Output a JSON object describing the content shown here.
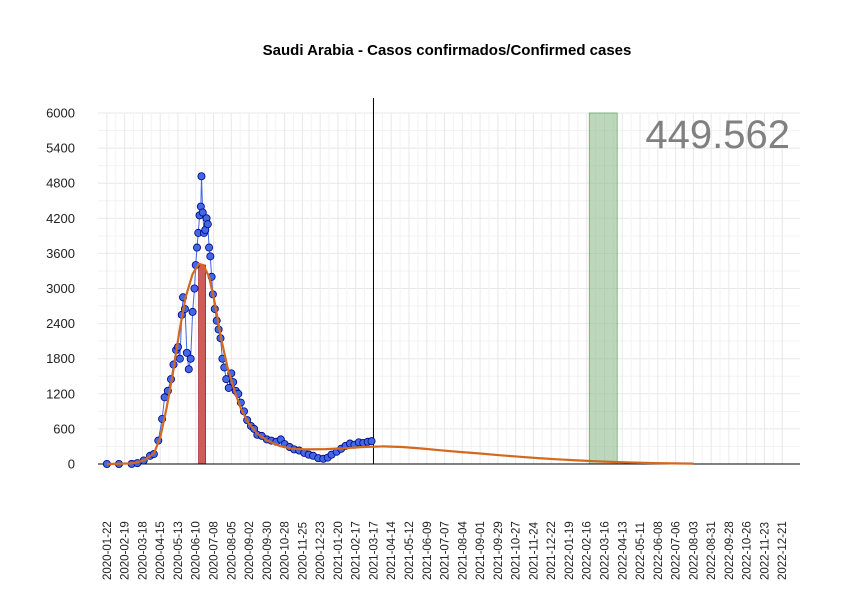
{
  "chart_data": {
    "type": "line",
    "title": "Saudi Arabia - Casos confirmados/Confirmed cases",
    "total_label": "449.562",
    "ylim": [
      0,
      6000
    ],
    "y_ticks": [
      0,
      600,
      1200,
      1800,
      2400,
      3000,
      3600,
      4200,
      4800,
      5400,
      6000
    ],
    "x_tick_labels": [
      "2020-01-22",
      "2020-02-19",
      "2020-03-18",
      "2020-04-15",
      "2020-05-13",
      "2020-06-10",
      "2020-07-08",
      "2020-08-05",
      "2020-09-02",
      "2020-09-30",
      "2020-10-28",
      "2020-11-25",
      "2020-12-23",
      "2021-01-20",
      "2021-02-17",
      "2021-03-17",
      "2021-04-14",
      "2021-05-12",
      "2021-06-09",
      "2021-07-07",
      "2021-08-04",
      "2021-09-01",
      "2021-09-29",
      "2021-10-27",
      "2021-11-24",
      "2021-12-22",
      "2022-01-19",
      "2022-02-16",
      "2022-03-16",
      "2022-04-13",
      "2022-05-11",
      "2022-06-08",
      "2022-07-06",
      "2022-08-03",
      "2022-08-31",
      "2022-09-28",
      "2022-10-26",
      "2022-11-23",
      "2022-12-21"
    ],
    "x_range": [
      "2020-01-08",
      "2023-01-18"
    ],
    "grid": true,
    "today_line": "2021-03-17",
    "peak_marker": {
      "date": "2020-06-20",
      "value": 3400
    },
    "forecast_window": {
      "start": "2022-02-20",
      "end": "2022-04-05"
    },
    "observed": {
      "name": "observed",
      "points": [
        [
          "2020-01-22",
          0
        ],
        [
          "2020-02-10",
          0
        ],
        [
          "2020-03-01",
          2
        ],
        [
          "2020-03-10",
          15
        ],
        [
          "2020-03-20",
          60
        ],
        [
          "2020-03-30",
          140
        ],
        [
          "2020-04-05",
          170
        ],
        [
          "2020-04-12",
          400
        ],
        [
          "2020-04-18",
          770
        ],
        [
          "2020-04-22",
          1140
        ],
        [
          "2020-04-27",
          1250
        ],
        [
          "2020-05-02",
          1450
        ],
        [
          "2020-05-06",
          1700
        ],
        [
          "2020-05-10",
          1950
        ],
        [
          "2020-05-13",
          2000
        ],
        [
          "2020-05-16",
          1800
        ],
        [
          "2020-05-19",
          2550
        ],
        [
          "2020-05-21",
          2850
        ],
        [
          "2020-05-24",
          2650
        ],
        [
          "2020-05-27",
          1900
        ],
        [
          "2020-05-30",
          1620
        ],
        [
          "2020-06-02",
          1800
        ],
        [
          "2020-06-05",
          2600
        ],
        [
          "2020-06-08",
          3000
        ],
        [
          "2020-06-10",
          3400
        ],
        [
          "2020-06-12",
          3700
        ],
        [
          "2020-06-14",
          3950
        ],
        [
          "2020-06-16",
          4250
        ],
        [
          "2020-06-18",
          4400
        ],
        [
          "2020-06-19",
          4919
        ],
        [
          "2020-06-21",
          4300
        ],
        [
          "2020-06-23",
          3950
        ],
        [
          "2020-06-25",
          4000
        ],
        [
          "2020-06-27",
          4200
        ],
        [
          "2020-06-29",
          4100
        ],
        [
          "2020-07-01",
          3700
        ],
        [
          "2020-07-03",
          3550
        ],
        [
          "2020-07-05",
          3200
        ],
        [
          "2020-07-07",
          2900
        ],
        [
          "2020-07-10",
          2650
        ],
        [
          "2020-07-13",
          2450
        ],
        [
          "2020-07-16",
          2300
        ],
        [
          "2020-07-19",
          2150
        ],
        [
          "2020-07-22",
          1800
        ],
        [
          "2020-07-25",
          1650
        ],
        [
          "2020-07-28",
          1450
        ],
        [
          "2020-08-01",
          1300
        ],
        [
          "2020-08-05",
          1550
        ],
        [
          "2020-08-08",
          1400
        ],
        [
          "2020-08-12",
          1250
        ],
        [
          "2020-08-16",
          1200
        ],
        [
          "2020-08-20",
          1050
        ],
        [
          "2020-08-25",
          900
        ],
        [
          "2020-08-30",
          750
        ],
        [
          "2020-09-05",
          650
        ],
        [
          "2020-09-10",
          600
        ],
        [
          "2020-09-15",
          500
        ],
        [
          "2020-09-22",
          480
        ],
        [
          "2020-09-30",
          420
        ],
        [
          "2020-10-07",
          400
        ],
        [
          "2020-10-15",
          380
        ],
        [
          "2020-10-22",
          420
        ],
        [
          "2020-10-28",
          340
        ],
        [
          "2020-11-05",
          290
        ],
        [
          "2020-11-12",
          250
        ],
        [
          "2020-11-20",
          230
        ],
        [
          "2020-11-28",
          190
        ],
        [
          "2020-12-05",
          160
        ],
        [
          "2020-12-12",
          140
        ],
        [
          "2020-12-20",
          100
        ],
        [
          "2020-12-28",
          90
        ],
        [
          "2021-01-04",
          110
        ],
        [
          "2021-01-10",
          160
        ],
        [
          "2021-01-18",
          210
        ],
        [
          "2021-01-25",
          260
        ],
        [
          "2021-02-01",
          310
        ],
        [
          "2021-02-08",
          350
        ],
        [
          "2021-02-15",
          330
        ],
        [
          "2021-02-22",
          370
        ],
        [
          "2021-03-01",
          360
        ],
        [
          "2021-03-08",
          380
        ],
        [
          "2021-03-14",
          390
        ]
      ]
    },
    "fitted": {
      "name": "fitted",
      "points": [
        [
          "2020-01-22",
          0
        ],
        [
          "2020-03-01",
          10
        ],
        [
          "2020-03-20",
          60
        ],
        [
          "2020-04-05",
          180
        ],
        [
          "2020-04-15",
          450
        ],
        [
          "2020-04-25",
          950
        ],
        [
          "2020-05-05",
          1550
        ],
        [
          "2020-05-15",
          2250
        ],
        [
          "2020-05-25",
          2850
        ],
        [
          "2020-06-05",
          3250
        ],
        [
          "2020-06-15",
          3420
        ],
        [
          "2020-06-22",
          3400
        ],
        [
          "2020-07-01",
          3200
        ],
        [
          "2020-07-10",
          2750
        ],
        [
          "2020-07-20",
          2150
        ],
        [
          "2020-07-30",
          1650
        ],
        [
          "2020-08-10",
          1250
        ],
        [
          "2020-08-20",
          950
        ],
        [
          "2020-09-01",
          700
        ],
        [
          "2020-09-15",
          520
        ],
        [
          "2020-10-01",
          400
        ],
        [
          "2020-10-20",
          310
        ],
        [
          "2020-11-10",
          260
        ],
        [
          "2020-12-01",
          250
        ],
        [
          "2021-01-01",
          255
        ],
        [
          "2021-02-01",
          270
        ],
        [
          "2021-03-01",
          290
        ],
        [
          "2021-04-01",
          300
        ],
        [
          "2021-05-01",
          290
        ],
        [
          "2021-06-01",
          265
        ],
        [
          "2021-07-01",
          235
        ],
        [
          "2021-08-01",
          205
        ],
        [
          "2021-09-01",
          180
        ],
        [
          "2021-10-01",
          150
        ],
        [
          "2021-11-01",
          125
        ],
        [
          "2021-12-01",
          100
        ],
        [
          "2022-01-01",
          80
        ],
        [
          "2022-02-01",
          62
        ],
        [
          "2022-03-01",
          48
        ],
        [
          "2022-04-01",
          35
        ],
        [
          "2022-05-01",
          24
        ],
        [
          "2022-06-01",
          16
        ],
        [
          "2022-07-01",
          10
        ],
        [
          "2022-08-03",
          6
        ]
      ]
    },
    "colors": {
      "observed_fill": "#4169e1",
      "observed_stroke": "#00008b",
      "fitted": "#d2691e",
      "peak_bar": "#cd5c5c",
      "forecast_window": "#8fbc8f",
      "today_line": "#000000",
      "grid": "#e8e8e8"
    }
  }
}
